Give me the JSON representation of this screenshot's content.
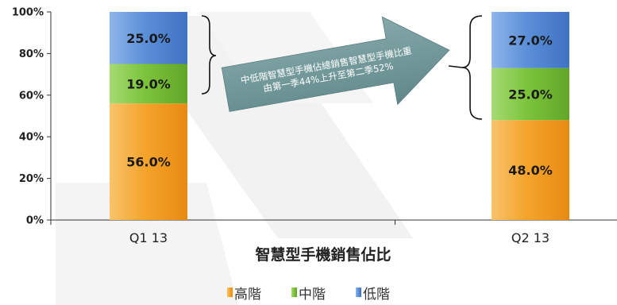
{
  "chart_data": {
    "type": "bar",
    "stacked": true,
    "percent": true,
    "title": "智慧型手機銷售佔比",
    "categories": [
      "Q1 13",
      "Q2 13"
    ],
    "ylim": [
      0,
      100
    ],
    "yticks": [
      "0%",
      "20%",
      "40%",
      "60%",
      "80%",
      "100%"
    ],
    "series": [
      {
        "name": "高階",
        "values": [
          56.0,
          48.0
        ],
        "labels": [
          "56.0%",
          "48.0%"
        ]
      },
      {
        "name": "中階",
        "values": [
          19.0,
          25.0
        ],
        "labels": [
          "19.0%",
          "25.0%"
        ]
      },
      {
        "name": "低階",
        "values": [
          25.0,
          27.0
        ],
        "labels": [
          "25.0%",
          "27.0%"
        ]
      }
    ],
    "annotation": {
      "lines": [
        "中低階智慧型手機佔總銷售智慧型手機比重",
        "由第一季44%上升至第二季52%"
      ]
    },
    "legend_position": "bottom",
    "grid": false
  },
  "colors": {
    "series": [
      "#f4a42c",
      "#7cc43c",
      "#5b8fd8"
    ],
    "series_light": [
      "#f9c36b",
      "#a5da72",
      "#8fb5ea"
    ],
    "series_dark": [
      "#e88a12",
      "#62a628",
      "#3f73c3"
    ],
    "arrow": "#6f979a",
    "axis": "#333333",
    "watermark": "#f1f1f1"
  }
}
